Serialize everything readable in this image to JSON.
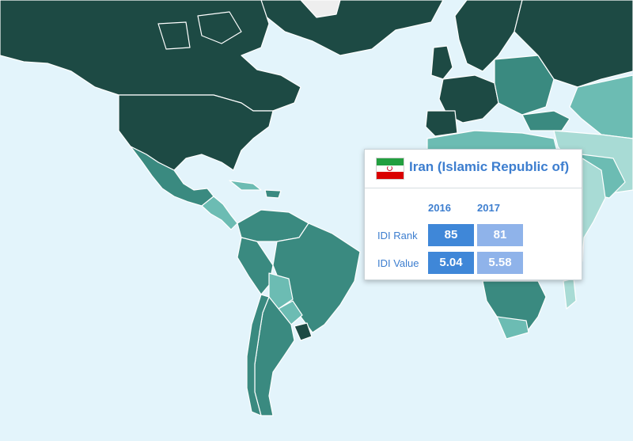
{
  "map": {
    "colors": {
      "ocean": "#e3f4fb",
      "dark": "#1d4a44",
      "mid": "#3a8a80",
      "light": "#6cbcb3",
      "pale": "#a8dbd5",
      "no_data": "#eeeeee"
    }
  },
  "tooltip": {
    "country": "Iran (Islamic Republic of)",
    "flag_icon": "iran-flag-icon",
    "flag_colors": [
      "#239f40",
      "#ffffff",
      "#da0000"
    ],
    "years": [
      "2016",
      "2017"
    ],
    "rows": [
      {
        "label": "IDI Rank",
        "values": [
          "85",
          "81"
        ]
      },
      {
        "label": "IDI Value",
        "values": [
          "5.04",
          "5.58"
        ]
      }
    ],
    "cell_colors": [
      "#3f87d8",
      "#8fb3ea"
    ]
  }
}
